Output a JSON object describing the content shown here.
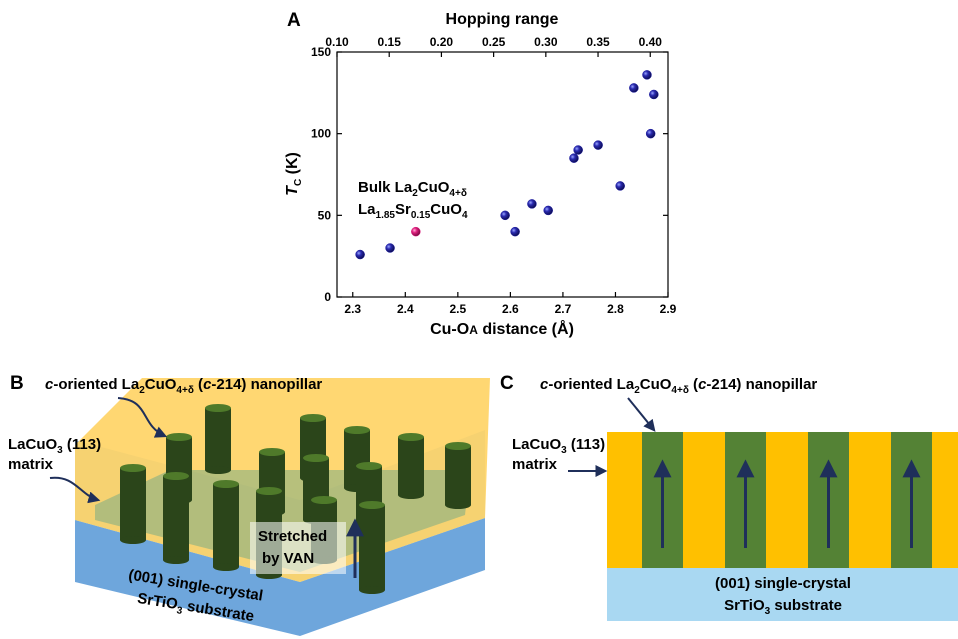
{
  "chart_data": {
    "type": "scatter",
    "x2label": "Hopping range",
    "ylabel_parts": [
      "T",
      "C",
      " (K)"
    ],
    "xlabel_parts": [
      "Cu-O",
      "A",
      " distance (Å)"
    ],
    "annotation_lines": [
      [
        "Bulk La",
        "2",
        "CuO",
        "4+δ"
      ],
      [
        "La",
        "1.85",
        "Sr",
        "0.15",
        "CuO",
        "4"
      ]
    ],
    "xlim": [
      2.27,
      2.9
    ],
    "xticks": [
      2.3,
      2.4,
      2.5,
      2.6,
      2.7,
      2.8,
      2.9
    ],
    "ylim": [
      0,
      150
    ],
    "yticks": [
      0,
      50,
      100,
      150
    ],
    "x2lim": [
      0.1,
      0.417
    ],
    "x2ticks": [
      {
        "value": 0.1,
        "label": "0.10"
      },
      0.15,
      {
        "value": 0.2,
        "label": "0.20"
      },
      0.25,
      {
        "value": 0.3,
        "label": "0.30"
      },
      0.35,
      {
        "value": 0.4,
        "label": "0.40"
      }
    ],
    "series": [
      {
        "color": "#1a1aa0",
        "x": [
          2.314,
          2.371,
          2.59,
          2.609,
          2.641,
          2.672,
          2.721,
          2.729,
          2.767,
          2.809,
          2.835,
          2.86,
          2.867,
          2.873
        ],
        "values": [
          26,
          30,
          50,
          40,
          57,
          53,
          85,
          90,
          93,
          68,
          128,
          136,
          100,
          124
        ]
      },
      {
        "color": "#e0207f",
        "x": [
          2.42
        ],
        "values": [
          40
        ]
      }
    ]
  },
  "panel_labels": [
    "A",
    "B",
    "C"
  ],
  "panel_b": {
    "pillar_label": [
      "c",
      "-oriented La",
      "2",
      "CuO",
      "4+δ",
      " (",
      "c",
      "-214) nanopillar"
    ],
    "matrix_label": [
      [
        "LaCuO",
        "3",
        " (113)"
      ],
      "matrix"
    ],
    "stretched_lines": [
      "Stretched",
      "by VAN"
    ],
    "substrate_lines": [
      "(001) single-crystal",
      [
        "SrTiO",
        "3",
        " substrate"
      ]
    ]
  },
  "panel_c": {
    "pillar_label": [
      "c",
      "-oriented La",
      "2",
      "CuO",
      "4+δ",
      " (",
      "c",
      "-214) nanopillar"
    ],
    "matrix_label": [
      [
        "LaCuO",
        "3",
        " (113)"
      ],
      "matrix"
    ],
    "substrate_lines": [
      "(001) single-crystal",
      [
        "SrTiO",
        "3",
        " substrate"
      ]
    ]
  }
}
